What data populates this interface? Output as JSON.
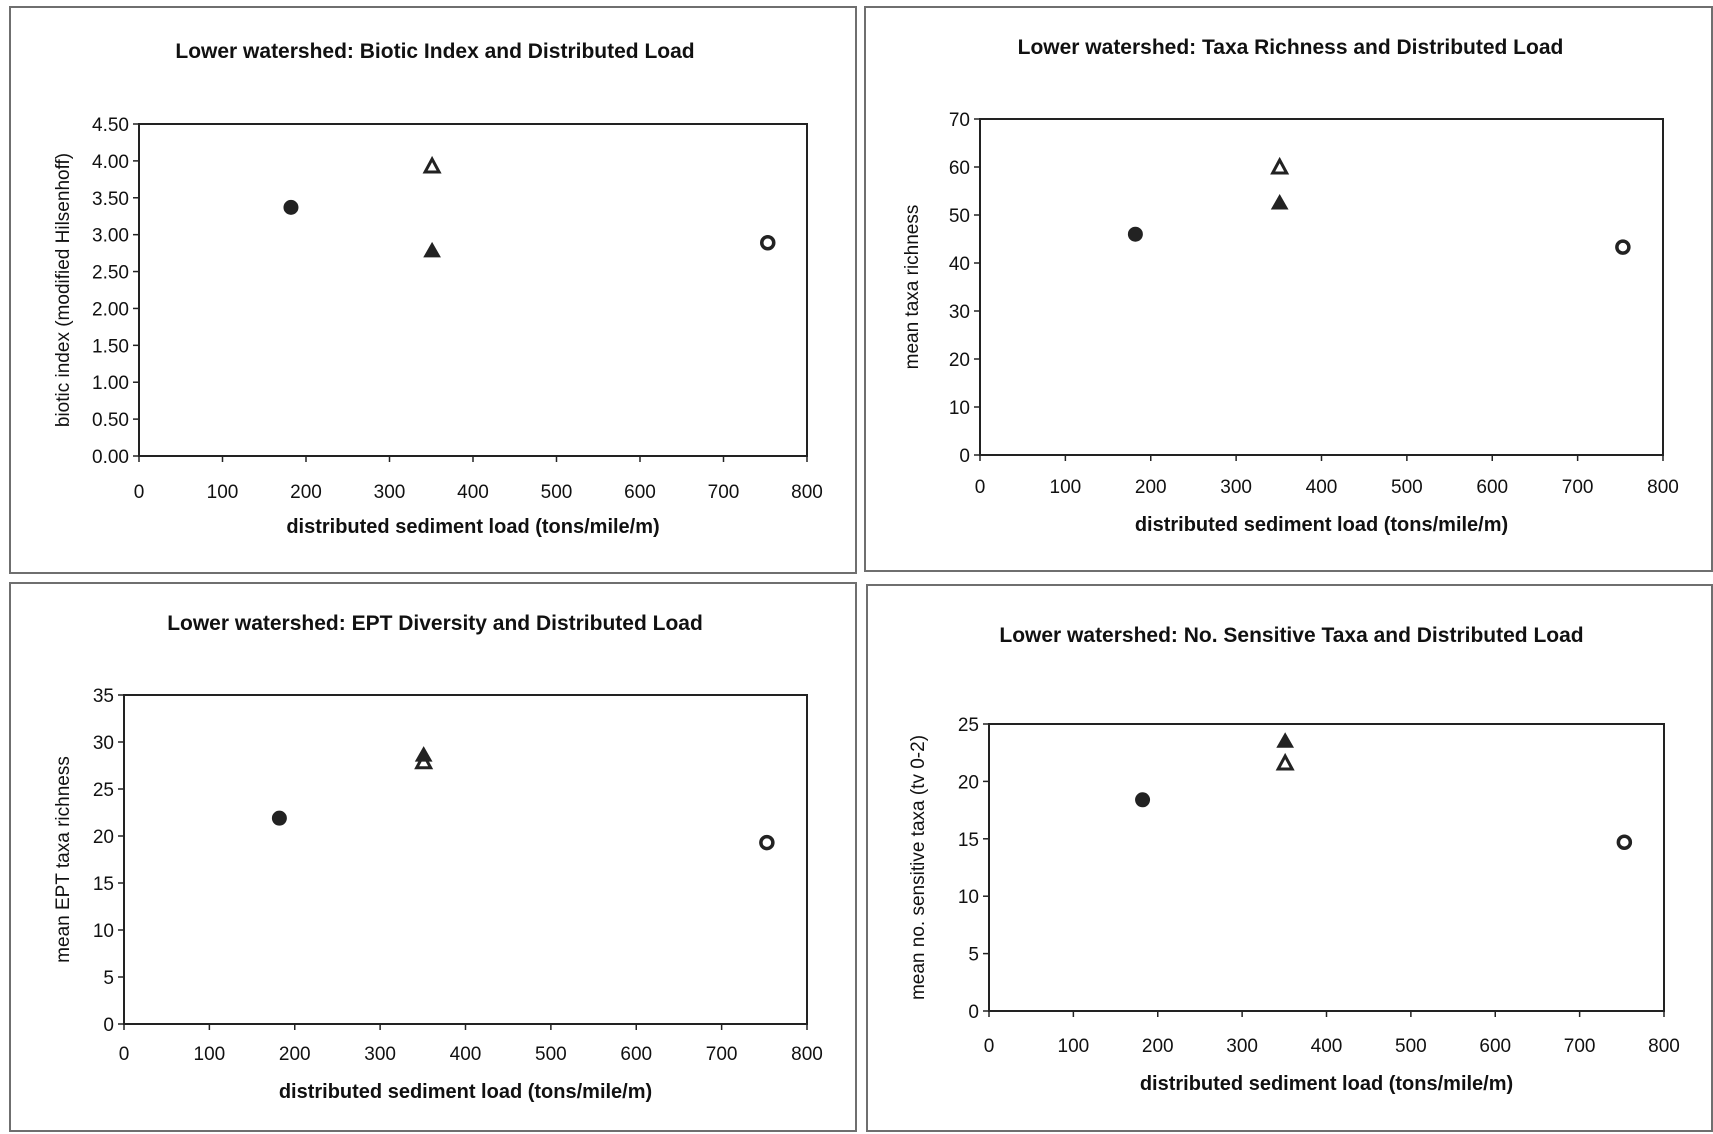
{
  "chart_data": [
    {
      "type": "scatter",
      "title": "Lower watershed: Biotic Index and Distributed Load",
      "xlabel": "distributed sediment load (tons/mile/m)",
      "ylabel": "biotic index (modified Hilsenhoff)",
      "xlim": [
        0,
        800
      ],
      "ylim": [
        0,
        4.5
      ],
      "xticks": [
        "0",
        "100",
        "200",
        "300",
        "400",
        "500",
        "600",
        "700",
        "800"
      ],
      "yticks": [
        "0.00",
        "0.50",
        "1.00",
        "1.50",
        "2.00",
        "2.50",
        "3.00",
        "3.50",
        "4.00",
        "4.50"
      ],
      "grid": false,
      "legend": "none",
      "series": [
        {
          "marker": "filled-circle",
          "points": [
            [
              182,
              3.37
            ]
          ]
        },
        {
          "marker": "open-triangle",
          "points": [
            [
              351,
              3.93
            ]
          ]
        },
        {
          "marker": "filled-triangle",
          "points": [
            [
              351,
              2.78
            ]
          ]
        },
        {
          "marker": "open-circle",
          "points": [
            [
              753,
              2.89
            ]
          ]
        }
      ]
    },
    {
      "type": "scatter",
      "title": "Lower watershed: Taxa Richness and Distributed Load",
      "xlabel": "distributed sediment load (tons/mile/m)",
      "ylabel": "mean taxa richness",
      "xlim": [
        0,
        800
      ],
      "ylim": [
        0,
        70
      ],
      "xticks": [
        "0",
        "100",
        "200",
        "300",
        "400",
        "500",
        "600",
        "700",
        "800"
      ],
      "yticks": [
        "0",
        "10",
        "20",
        "30",
        "40",
        "50",
        "60",
        "70"
      ],
      "grid": false,
      "legend": "none",
      "series": [
        {
          "marker": "filled-circle",
          "points": [
            [
              182,
              46
            ]
          ]
        },
        {
          "marker": "open-triangle",
          "points": [
            [
              351,
              60
            ]
          ]
        },
        {
          "marker": "filled-triangle",
          "points": [
            [
              351,
              52.5
            ]
          ]
        },
        {
          "marker": "open-circle",
          "points": [
            [
              753,
              43.3
            ]
          ]
        }
      ]
    },
    {
      "type": "scatter",
      "title": "Lower watershed: EPT Diversity and Distributed Load",
      "xlabel": "distributed sediment load (tons/mile/m)",
      "ylabel": "mean EPT taxa richness",
      "xlim": [
        0,
        800
      ],
      "ylim": [
        0,
        35
      ],
      "xticks": [
        "0",
        "100",
        "200",
        "300",
        "400",
        "500",
        "600",
        "700",
        "800"
      ],
      "yticks": [
        "0",
        "5",
        "10",
        "15",
        "20",
        "25",
        "30",
        "35"
      ],
      "grid": false,
      "legend": "none",
      "series": [
        {
          "marker": "filled-circle",
          "points": [
            [
              182,
              21.9
            ]
          ]
        },
        {
          "marker": "open-triangle",
          "points": [
            [
              351,
              27.9
            ]
          ]
        },
        {
          "marker": "filled-triangle",
          "points": [
            [
              351,
              28.6
            ]
          ]
        },
        {
          "marker": "open-circle",
          "points": [
            [
              753,
              19.3
            ]
          ]
        }
      ]
    },
    {
      "type": "scatter",
      "title": "Lower watershed: No. Sensitive Taxa and Distributed Load",
      "xlabel": "distributed sediment load (tons/mile/m)",
      "ylabel": "mean no. sensitive taxa (tv 0-2)",
      "xlim": [
        0,
        800
      ],
      "ylim": [
        0,
        25
      ],
      "xticks": [
        "0",
        "100",
        "200",
        "300",
        "400",
        "500",
        "600",
        "700",
        "800"
      ],
      "yticks": [
        "0",
        "5",
        "10",
        "15",
        "20",
        "25"
      ],
      "grid": false,
      "legend": "none",
      "series": [
        {
          "marker": "filled-circle",
          "points": [
            [
              182,
              18.4
            ]
          ]
        },
        {
          "marker": "open-triangle",
          "points": [
            [
              351,
              21.6
            ]
          ]
        },
        {
          "marker": "filled-triangle",
          "points": [
            [
              351,
              23.5
            ]
          ]
        },
        {
          "marker": "open-circle",
          "points": [
            [
              753,
              14.7
            ]
          ]
        }
      ]
    }
  ]
}
